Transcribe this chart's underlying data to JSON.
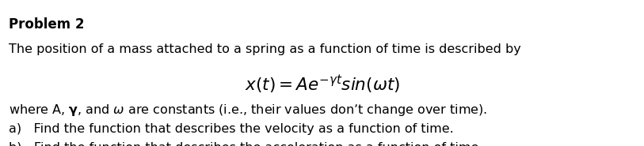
{
  "title": "Problem 2",
  "line1": "The position of a mass attached to a spring as a function of time is described by",
  "equation": "$x(t) = Ae^{-\\gamma t}sin(\\omega t)$",
  "line2": "where A, $\\mathbf{\\gamma}$, and $\\omega$ are constants (i.e., their values don’t change over time).",
  "line3a": "a)   Find the function that describes the velocity as a function of time.",
  "line3b": "b)   Find the function that describes the acceleration as a function of time.",
  "background_color": "#ffffff",
  "text_color": "#000000",
  "font_size": 11.5,
  "equation_font_size": 15.5,
  "title_font_size": 12.0
}
